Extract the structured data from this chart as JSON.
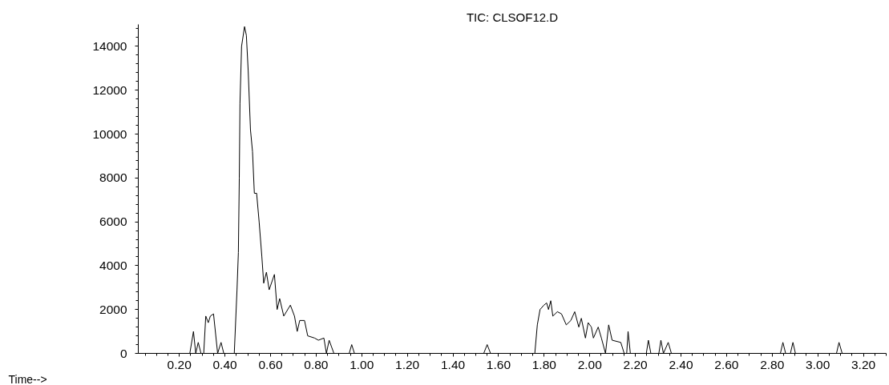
{
  "chart_data": {
    "type": "line",
    "title": "TIC: CLSOF12.D",
    "xlabel": "Time-->",
    "x": [
      0.02,
      0.246,
      0.262,
      0.272,
      0.283,
      0.295,
      0.307,
      0.316,
      0.327,
      0.336,
      0.35,
      0.368,
      0.383,
      0.395,
      0.441,
      0.453,
      0.459,
      0.463,
      0.466,
      0.473,
      0.486,
      0.494,
      0.502,
      0.512,
      0.521,
      0.529,
      0.539,
      0.55,
      0.562,
      0.57,
      0.582,
      0.594,
      0.617,
      0.629,
      0.64,
      0.658,
      0.687,
      0.705,
      0.717,
      0.728,
      0.749,
      0.763,
      0.793,
      0.81,
      0.834,
      0.845,
      0.857,
      0.878,
      0.945,
      0.956,
      0.968,
      1.535,
      1.55,
      1.565,
      1.759,
      1.77,
      1.782,
      1.799,
      1.811,
      1.819,
      1.829,
      1.838,
      1.858,
      1.876,
      1.897,
      1.917,
      1.934,
      1.952,
      1.963,
      1.981,
      1.993,
      2.007,
      2.016,
      2.037,
      2.051,
      2.069,
      2.083,
      2.098,
      2.136,
      2.151,
      2.162,
      2.168,
      2.178,
      2.248,
      2.257,
      2.268,
      2.303,
      2.312,
      2.323,
      2.344,
      2.358,
      2.836,
      2.847,
      2.859,
      2.88,
      2.891,
      2.902,
      3.082,
      3.093,
      3.107,
      3.28
    ],
    "series": [
      {
        "color": "#000000",
        "values": [
          0,
          0,
          1000,
          0,
          500,
          0,
          0,
          1700,
          1400,
          1700,
          1800,
          0,
          500,
          0,
          0,
          2900,
          4600,
          8000,
          11400,
          14000,
          14900,
          14500,
          12900,
          10200,
          9200,
          7300,
          7300,
          6000,
          4400,
          3200,
          3700,
          2900,
          3600,
          2000,
          2500,
          1700,
          2200,
          1700,
          1000,
          1500,
          1500,
          800,
          700,
          600,
          700,
          0,
          600,
          0,
          0,
          400,
          0,
          0,
          400,
          0,
          0,
          1300,
          2000,
          2200,
          2300,
          2000,
          2400,
          1700,
          1900,
          1800,
          1300,
          1500,
          1900,
          1200,
          1600,
          700,
          1400,
          1200,
          700,
          1200,
          700,
          0,
          1300,
          600,
          500,
          0,
          0,
          1000,
          0,
          0,
          600,
          0,
          0,
          600,
          0,
          500,
          0,
          0,
          500,
          0,
          0,
          500,
          0,
          0,
          500,
          0,
          0
        ]
      }
    ],
    "xlim": [
      0.02,
      3.3
    ],
    "ylim": [
      0,
      15000
    ],
    "xticks": [
      {
        "value": 0.2,
        "label": "0.20"
      },
      {
        "value": 0.4,
        "label": "0.40"
      },
      {
        "value": 0.6,
        "label": "0.60"
      },
      {
        "value": 0.8,
        "label": "0.80"
      },
      {
        "value": 1.0,
        "label": "1.00"
      },
      {
        "value": 1.2,
        "label": "1.20"
      },
      {
        "value": 1.4,
        "label": "1.40"
      },
      {
        "value": 1.6,
        "label": "1.60"
      },
      {
        "value": 1.8,
        "label": "1.80"
      },
      {
        "value": 2.0,
        "label": "2.00"
      },
      {
        "value": 2.2,
        "label": "2.20"
      },
      {
        "value": 2.4,
        "label": "2.40"
      },
      {
        "value": 2.6,
        "label": "2.60"
      },
      {
        "value": 2.8,
        "label": "2.80"
      },
      {
        "value": 3.0,
        "label": "3.00"
      },
      {
        "value": 3.2,
        "label": "3.20"
      }
    ],
    "yticks": [
      0,
      2000,
      4000,
      6000,
      8000,
      10000,
      12000,
      14000
    ],
    "grid": false
  }
}
